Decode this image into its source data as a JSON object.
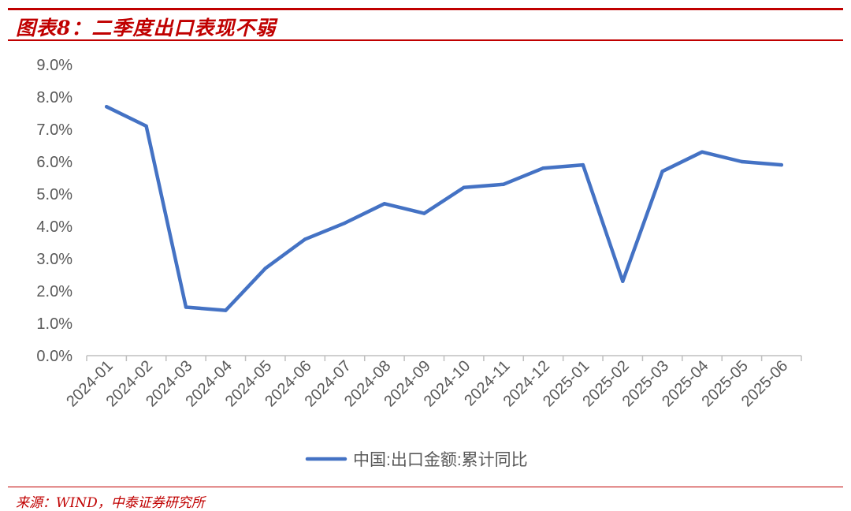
{
  "figure": {
    "title": "图表8：二季度出口表现不弱",
    "source": "来源：WIND，中泰证券研究所"
  },
  "colors": {
    "accent": "#c00000",
    "series_line": "#4472c4",
    "axis_text": "#595959",
    "axis_line": "#bfbfbf"
  },
  "chart_data": {
    "type": "line",
    "title": "",
    "xlabel": "",
    "ylabel": "",
    "x": [
      "2024-01",
      "2024-02",
      "2024-03",
      "2024-04",
      "2024-05",
      "2024-06",
      "2024-07",
      "2024-08",
      "2024-09",
      "2024-10",
      "2024-11",
      "2024-12",
      "2025-01",
      "2025-02",
      "2025-03",
      "2025-04",
      "2025-05",
      "2025-06"
    ],
    "series": [
      {
        "name": "中国:出口金额:累计同比",
        "values": [
          7.7,
          7.1,
          1.5,
          1.4,
          2.7,
          3.6,
          4.1,
          4.7,
          4.4,
          5.2,
          5.3,
          5.8,
          5.9,
          2.3,
          5.7,
          6.3,
          6.0,
          5.9
        ]
      }
    ],
    "ylim": [
      0,
      9
    ],
    "yticks": [
      0,
      1,
      2,
      3,
      4,
      5,
      6,
      7,
      8,
      9
    ],
    "ytick_labels": [
      "0.0%",
      "1.0%",
      "2.0%",
      "3.0%",
      "4.0%",
      "5.0%",
      "6.0%",
      "7.0%",
      "8.0%",
      "9.0%"
    ],
    "grid": false,
    "legend_position": "bottom-center"
  }
}
